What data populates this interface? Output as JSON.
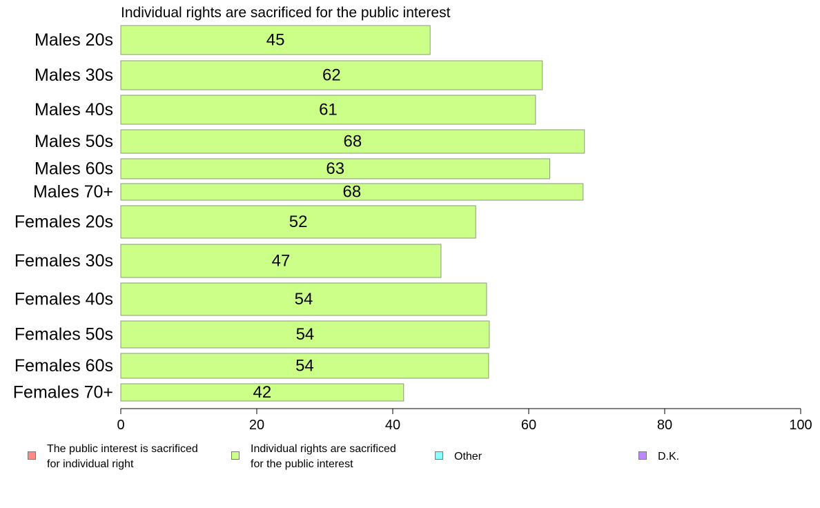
{
  "chart_data": {
    "type": "bar",
    "orientation": "horizontal",
    "title": "Individual rights are sacrificed for the public interest",
    "categories": [
      "Males 20s",
      "Males 30s",
      "Males 40s",
      "Males 50s",
      "Males 60s",
      "Males 70+",
      "Females 20s",
      "Females 30s",
      "Females 40s",
      "Females 50s",
      "Females 60s",
      "Females 70+"
    ],
    "values": [
      45,
      62,
      61,
      68,
      63,
      68,
      52,
      47,
      54,
      54,
      54,
      42
    ],
    "data_labels": [
      "45",
      "62",
      "61",
      "68",
      "63",
      "68",
      "52",
      "47",
      "54",
      "54",
      "54",
      "42"
    ],
    "bar_values": [
      45.5,
      62,
      61,
      68.2,
      63.1,
      68,
      52.2,
      47.1,
      53.8,
      54.2,
      54.1,
      41.6
    ],
    "xlim": [
      0,
      100
    ],
    "xticks": [
      "0",
      "20",
      "40",
      "60",
      "80",
      "100"
    ],
    "grid": false,
    "bar_color": "#ccff88",
    "bar_edge_color": "#8a9a80",
    "legend": {
      "placement": "bottom",
      "entries": [
        {
          "label": "The public interest is sacrificed\nfor individual right",
          "color": "#ff8888"
        },
        {
          "label": "Individual rights are sacrificed\nfor the public interest",
          "color": "#ccff88"
        },
        {
          "label": "Other",
          "color": "#88ffff"
        },
        {
          "label": "D.K.",
          "color": "#bb88ff"
        }
      ]
    }
  }
}
